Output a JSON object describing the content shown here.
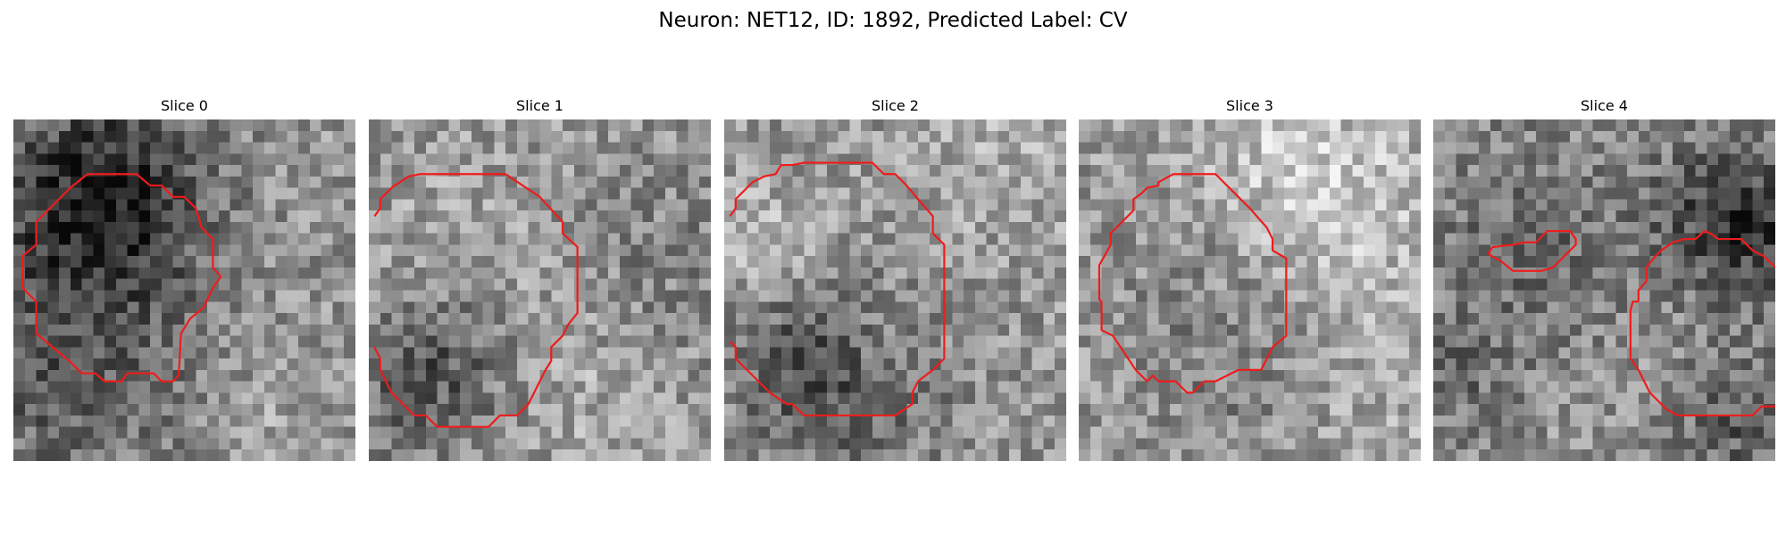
{
  "figure": {
    "title": "Neuron: NET12, ID: 1892, Predicted Label: CV",
    "contour_color": "#ee1c1c",
    "grid_cells": 30,
    "colormap": "gray"
  },
  "slices": [
    {
      "title": "Slice 0",
      "seed": 11,
      "contours": [
        [
          [
            6.5,
            4.8
          ],
          [
            10.8,
            4.8
          ],
          [
            12.0,
            5.8
          ],
          [
            13.0,
            5.8
          ],
          [
            14.0,
            6.8
          ],
          [
            15.0,
            6.8
          ],
          [
            16.0,
            7.8
          ],
          [
            16.5,
            9.5
          ],
          [
            17.5,
            10.5
          ],
          [
            17.5,
            13.0
          ],
          [
            18.2,
            13.8
          ],
          [
            17.5,
            14.8
          ],
          [
            16.7,
            16.5
          ],
          [
            15.5,
            17.5
          ],
          [
            14.7,
            18.8
          ],
          [
            14.5,
            22.5
          ],
          [
            14.0,
            23.0
          ],
          [
            13.0,
            23.0
          ],
          [
            12.3,
            22.3
          ],
          [
            10.0,
            22.3
          ],
          [
            9.5,
            23.0
          ],
          [
            8.0,
            23.0
          ],
          [
            7.2,
            22.3
          ],
          [
            6.0,
            22.3
          ],
          [
            5.0,
            21.3
          ],
          [
            2.0,
            18.8
          ],
          [
            2.0,
            16.0
          ],
          [
            0.8,
            14.8
          ],
          [
            0.8,
            12.0
          ],
          [
            2.0,
            11.0
          ],
          [
            2.0,
            9.0
          ],
          [
            3.5,
            7.5
          ],
          [
            5.0,
            6.0
          ],
          [
            6.5,
            4.8
          ]
        ]
      ]
    },
    {
      "title": "Slice 1",
      "seed": 23,
      "contours": [
        [
          [
            0.5,
            8.5
          ],
          [
            1.0,
            7.8
          ],
          [
            1.0,
            7.0
          ],
          [
            2.0,
            6.0
          ],
          [
            3.5,
            5.0
          ],
          [
            4.5,
            4.8
          ],
          [
            12.0,
            4.8
          ],
          [
            15.0,
            6.8
          ],
          [
            17.0,
            9.0
          ],
          [
            17.0,
            10.0
          ],
          [
            18.3,
            11.2
          ],
          [
            18.3,
            17.0
          ],
          [
            17.5,
            18.0
          ],
          [
            17.0,
            19.0
          ],
          [
            16.0,
            20.0
          ],
          [
            16.0,
            21.2
          ],
          [
            15.5,
            22.0
          ],
          [
            15.0,
            23.0
          ],
          [
            14.0,
            25.0
          ],
          [
            13.0,
            26.0
          ],
          [
            11.5,
            26.0
          ],
          [
            10.5,
            27.0
          ],
          [
            6.0,
            27.0
          ],
          [
            5.0,
            26.0
          ],
          [
            4.0,
            26.0
          ],
          [
            2.0,
            24.0
          ],
          [
            1.0,
            22.0
          ],
          [
            1.0,
            21.0
          ],
          [
            0.5,
            20.0
          ]
        ]
      ]
    },
    {
      "title": "Slice 2",
      "seed": 37,
      "contours": [
        [
          [
            0.5,
            8.5
          ],
          [
            1.0,
            7.8
          ],
          [
            1.0,
            7.0
          ],
          [
            2.5,
            5.5
          ],
          [
            3.5,
            5.0
          ],
          [
            4.5,
            4.8
          ],
          [
            5.0,
            4.0
          ],
          [
            6.0,
            4.0
          ],
          [
            7.0,
            3.8
          ],
          [
            13.0,
            3.8
          ],
          [
            14.0,
            4.8
          ],
          [
            15.0,
            4.8
          ],
          [
            16.0,
            5.8
          ],
          [
            17.0,
            7.0
          ],
          [
            18.3,
            8.5
          ],
          [
            18.3,
            10.0
          ],
          [
            19.3,
            11.0
          ],
          [
            19.3,
            12.0
          ],
          [
            19.3,
            21.0
          ],
          [
            18.3,
            22.0
          ],
          [
            17.0,
            23.0
          ],
          [
            16.5,
            24.0
          ],
          [
            16.5,
            25.0
          ],
          [
            15.0,
            26.0
          ],
          [
            7.0,
            26.0
          ],
          [
            6.0,
            25.0
          ],
          [
            5.5,
            25.0
          ],
          [
            4.0,
            24.0
          ],
          [
            3.0,
            23.0
          ],
          [
            2.0,
            22.0
          ],
          [
            1.0,
            21.0
          ],
          [
            1.0,
            20.0
          ],
          [
            0.5,
            19.5
          ]
        ]
      ]
    },
    {
      "title": "Slice 3",
      "seed": 51,
      "contours": [
        [
          [
            8.3,
            4.8
          ],
          [
            12.0,
            4.8
          ],
          [
            13.0,
            5.8
          ],
          [
            14.0,
            6.8
          ],
          [
            15.0,
            7.8
          ],
          [
            16.5,
            9.5
          ],
          [
            17.0,
            10.5
          ],
          [
            17.0,
            11.5
          ],
          [
            18.2,
            12.2
          ],
          [
            18.2,
            19.0
          ],
          [
            17.0,
            20.0
          ],
          [
            16.5,
            21.0
          ],
          [
            16.0,
            22.0
          ],
          [
            15.0,
            22.0
          ],
          [
            14.0,
            22.0
          ],
          [
            13.0,
            22.5
          ],
          [
            12.0,
            23.0
          ],
          [
            11.0,
            23.0
          ],
          [
            10.5,
            23.5
          ],
          [
            10.0,
            24.0
          ],
          [
            9.5,
            24.0
          ],
          [
            9.0,
            23.5
          ],
          [
            8.5,
            23.0
          ],
          [
            7.0,
            23.0
          ],
          [
            6.5,
            22.5
          ],
          [
            6.0,
            23.0
          ],
          [
            5.0,
            22.0
          ],
          [
            3.0,
            19.0
          ],
          [
            2.0,
            18.5
          ],
          [
            2.0,
            16.0
          ],
          [
            1.8,
            15.8
          ],
          [
            1.8,
            13.0
          ],
          [
            1.8,
            12.8
          ],
          [
            2.8,
            11.0
          ],
          [
            2.8,
            10.0
          ],
          [
            3.8,
            9.0
          ],
          [
            4.8,
            8.0
          ],
          [
            4.8,
            7.0
          ],
          [
            5.5,
            6.5
          ],
          [
            6.0,
            6.0
          ],
          [
            7.0,
            5.8
          ],
          [
            7.0,
            5.5
          ],
          [
            8.3,
            4.8
          ]
        ],
        [
          [
            30.0,
            30.0
          ]
        ]
      ]
    },
    {
      "title": "Slice 4",
      "seed": 67,
      "contours": [
        [
          [
            4.8,
            11.8
          ],
          [
            5.2,
            11.2
          ],
          [
            7.0,
            11.0
          ],
          [
            8.0,
            10.8
          ],
          [
            9.0,
            10.8
          ],
          [
            10.0,
            9.8
          ],
          [
            11.0,
            9.8
          ],
          [
            12.0,
            9.8
          ],
          [
            12.5,
            10.5
          ],
          [
            12.5,
            11.0
          ],
          [
            11.5,
            12.0
          ],
          [
            10.5,
            13.0
          ],
          [
            9.5,
            13.3
          ],
          [
            7.0,
            13.3
          ],
          [
            6.0,
            12.5
          ],
          [
            4.8,
            11.8
          ]
        ],
        [
          [
            18.0,
            16.0
          ],
          [
            18.0,
            15.0
          ],
          [
            18.7,
            14.2
          ],
          [
            18.7,
            13.0
          ],
          [
            19.5,
            12.0
          ],
          [
            20.0,
            11.5
          ],
          [
            21.0,
            10.8
          ],
          [
            22.0,
            10.5
          ],
          [
            23.0,
            10.5
          ],
          [
            23.8,
            9.8
          ],
          [
            24.3,
            10.0
          ],
          [
            25.0,
            10.5
          ],
          [
            26.0,
            10.5
          ],
          [
            27.0,
            10.5
          ],
          [
            28.0,
            11.5
          ],
          [
            29.0,
            12.0
          ],
          [
            29.5,
            12.5
          ],
          [
            30.0,
            13.0
          ]
        ],
        [
          [
            18.0,
            16.0
          ],
          [
            17.5,
            16.0
          ],
          [
            17.3,
            16.8
          ],
          [
            17.3,
            21.0
          ],
          [
            18.0,
            22.0
          ],
          [
            19.0,
            24.0
          ],
          [
            20.5,
            25.5
          ],
          [
            21.5,
            26.0
          ],
          [
            28.0,
            26.0
          ],
          [
            28.8,
            25.2
          ],
          [
            30.0,
            25.2
          ]
        ]
      ]
    }
  ]
}
